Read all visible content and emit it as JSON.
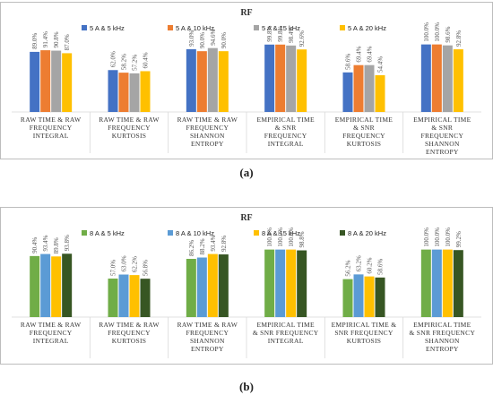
{
  "figure": {
    "label_a": "(a)",
    "label_b": "(b)"
  },
  "chart_data": [
    {
      "type": "bar",
      "title": "RF",
      "categories": [
        [
          "RAW TIME & RAW",
          "FREQUENCY",
          "INTEGRAL"
        ],
        [
          "RAW TIME & RAW",
          "FREQUENCY",
          "KURTOSIS"
        ],
        [
          "RAW TIME & RAW",
          "FREQUENCY",
          "SHANNON",
          "ENTROPY"
        ],
        [
          "EMPIRICAL TIME",
          "& SNR",
          "FREQUENCY",
          "INTEGRAL"
        ],
        [
          "EMPIRICAL TIME",
          "& SNR",
          "FREQUENCY",
          "KURTOSIS"
        ],
        [
          "EMPIRICAL TIME",
          "& SNR",
          "FREQUENCY",
          "SHANNON",
          "ENTROPY"
        ]
      ],
      "series": [
        {
          "name": "5 A & 5 kHz",
          "color": "#4472C4",
          "values": [
            89.0,
            62.0,
            93.0,
            99.8,
            58.6,
            100.0
          ],
          "labels": [
            "89.0%",
            "62.0%",
            "93.0%",
            "99.8%",
            "58.6%",
            "100.0%"
          ]
        },
        {
          "name": "5 A & 10 kHz",
          "color": "#ED7D31",
          "values": [
            91.4,
            58.2,
            90.0,
            99.8,
            69.4,
            100.0
          ],
          "labels": [
            "91.4%",
            "58.2%",
            "90.0%",
            "99.8%",
            "69.4%",
            "100.0%"
          ]
        },
        {
          "name": "5 A & 15 kHz",
          "color": "#A5A5A5",
          "values": [
            90.8,
            57.2,
            94.6,
            98.4,
            69.4,
            98.6
          ],
          "labels": [
            "90.8%",
            "57.2%",
            "94.6%",
            "98.4%",
            "69.4%",
            "98.6%"
          ]
        },
        {
          "name": "5 A & 20 kHz",
          "color": "#FFC000",
          "values": [
            87.0,
            60.4,
            90.0,
            92.6,
            54.4,
            92.8
          ],
          "labels": [
            "87.0%",
            "60.4%",
            "90.0%",
            "92.6%",
            "54.4%",
            "92.8%"
          ]
        }
      ],
      "ylim": [
        0,
        130
      ],
      "grid": false,
      "legend": "top"
    },
    {
      "type": "bar",
      "title": "RF",
      "categories": [
        [
          "RAW TIME & RAW",
          "FREQUENCY",
          "INTEGRAL"
        ],
        [
          "RAW TIME & RAW",
          "FREQUENCY",
          "KURTOSIS"
        ],
        [
          "RAW TIME & RAW",
          "FREQUENCY",
          "SHANNON",
          "ENTROPY"
        ],
        [
          "EMPIRICAL TIME",
          "& SNR FREQUENCY",
          "INTEGRAL"
        ],
        [
          "EMPIRICAL TIME &",
          "SNR FREQUENCY",
          "KURTOSIS"
        ],
        [
          "EMPIRICAL TIME",
          "& SNR FREQUENCY",
          "SHANNON",
          "ENTROPY"
        ]
      ],
      "series": [
        {
          "name": "8 A & 5 kHz",
          "color": "#70AD47",
          "values": [
            90.4,
            57.0,
            86.2,
            100.0,
            56.2,
            100.0
          ],
          "labels": [
            "90.4%",
            "57.0%",
            "86.2%",
            "100.0%",
            "56.2%",
            "100.0%"
          ]
        },
        {
          "name": "8 A & 10 kHz",
          "color": "#5B9BD5",
          "values": [
            93.4,
            63.0,
            88.2,
            100.0,
            63.2,
            100.0
          ],
          "labels": [
            "93.4%",
            "63.0%",
            "88.2%",
            "100.0%",
            "63.2%",
            "100.0%"
          ]
        },
        {
          "name": "8 A & 15 kHz",
          "color": "#FFC000",
          "values": [
            89.8,
            62.2,
            93.4,
            100.0,
            60.2,
            100.0
          ],
          "labels": [
            "89.8%",
            "62.2%",
            "93.4%",
            "100.0%",
            "60.2%",
            "100.0%"
          ]
        },
        {
          "name": "8 A & 20 kHz",
          "color": "#375623",
          "values": [
            93.8,
            56.8,
            92.8,
            98.8,
            58.6,
            99.2
          ],
          "labels": [
            "93.8%",
            "56.8%",
            "92.8%",
            "98.8%",
            "58.6%",
            "99.2%"
          ]
        }
      ],
      "ylim": [
        0,
        130
      ],
      "grid": false,
      "legend": "top"
    }
  ]
}
